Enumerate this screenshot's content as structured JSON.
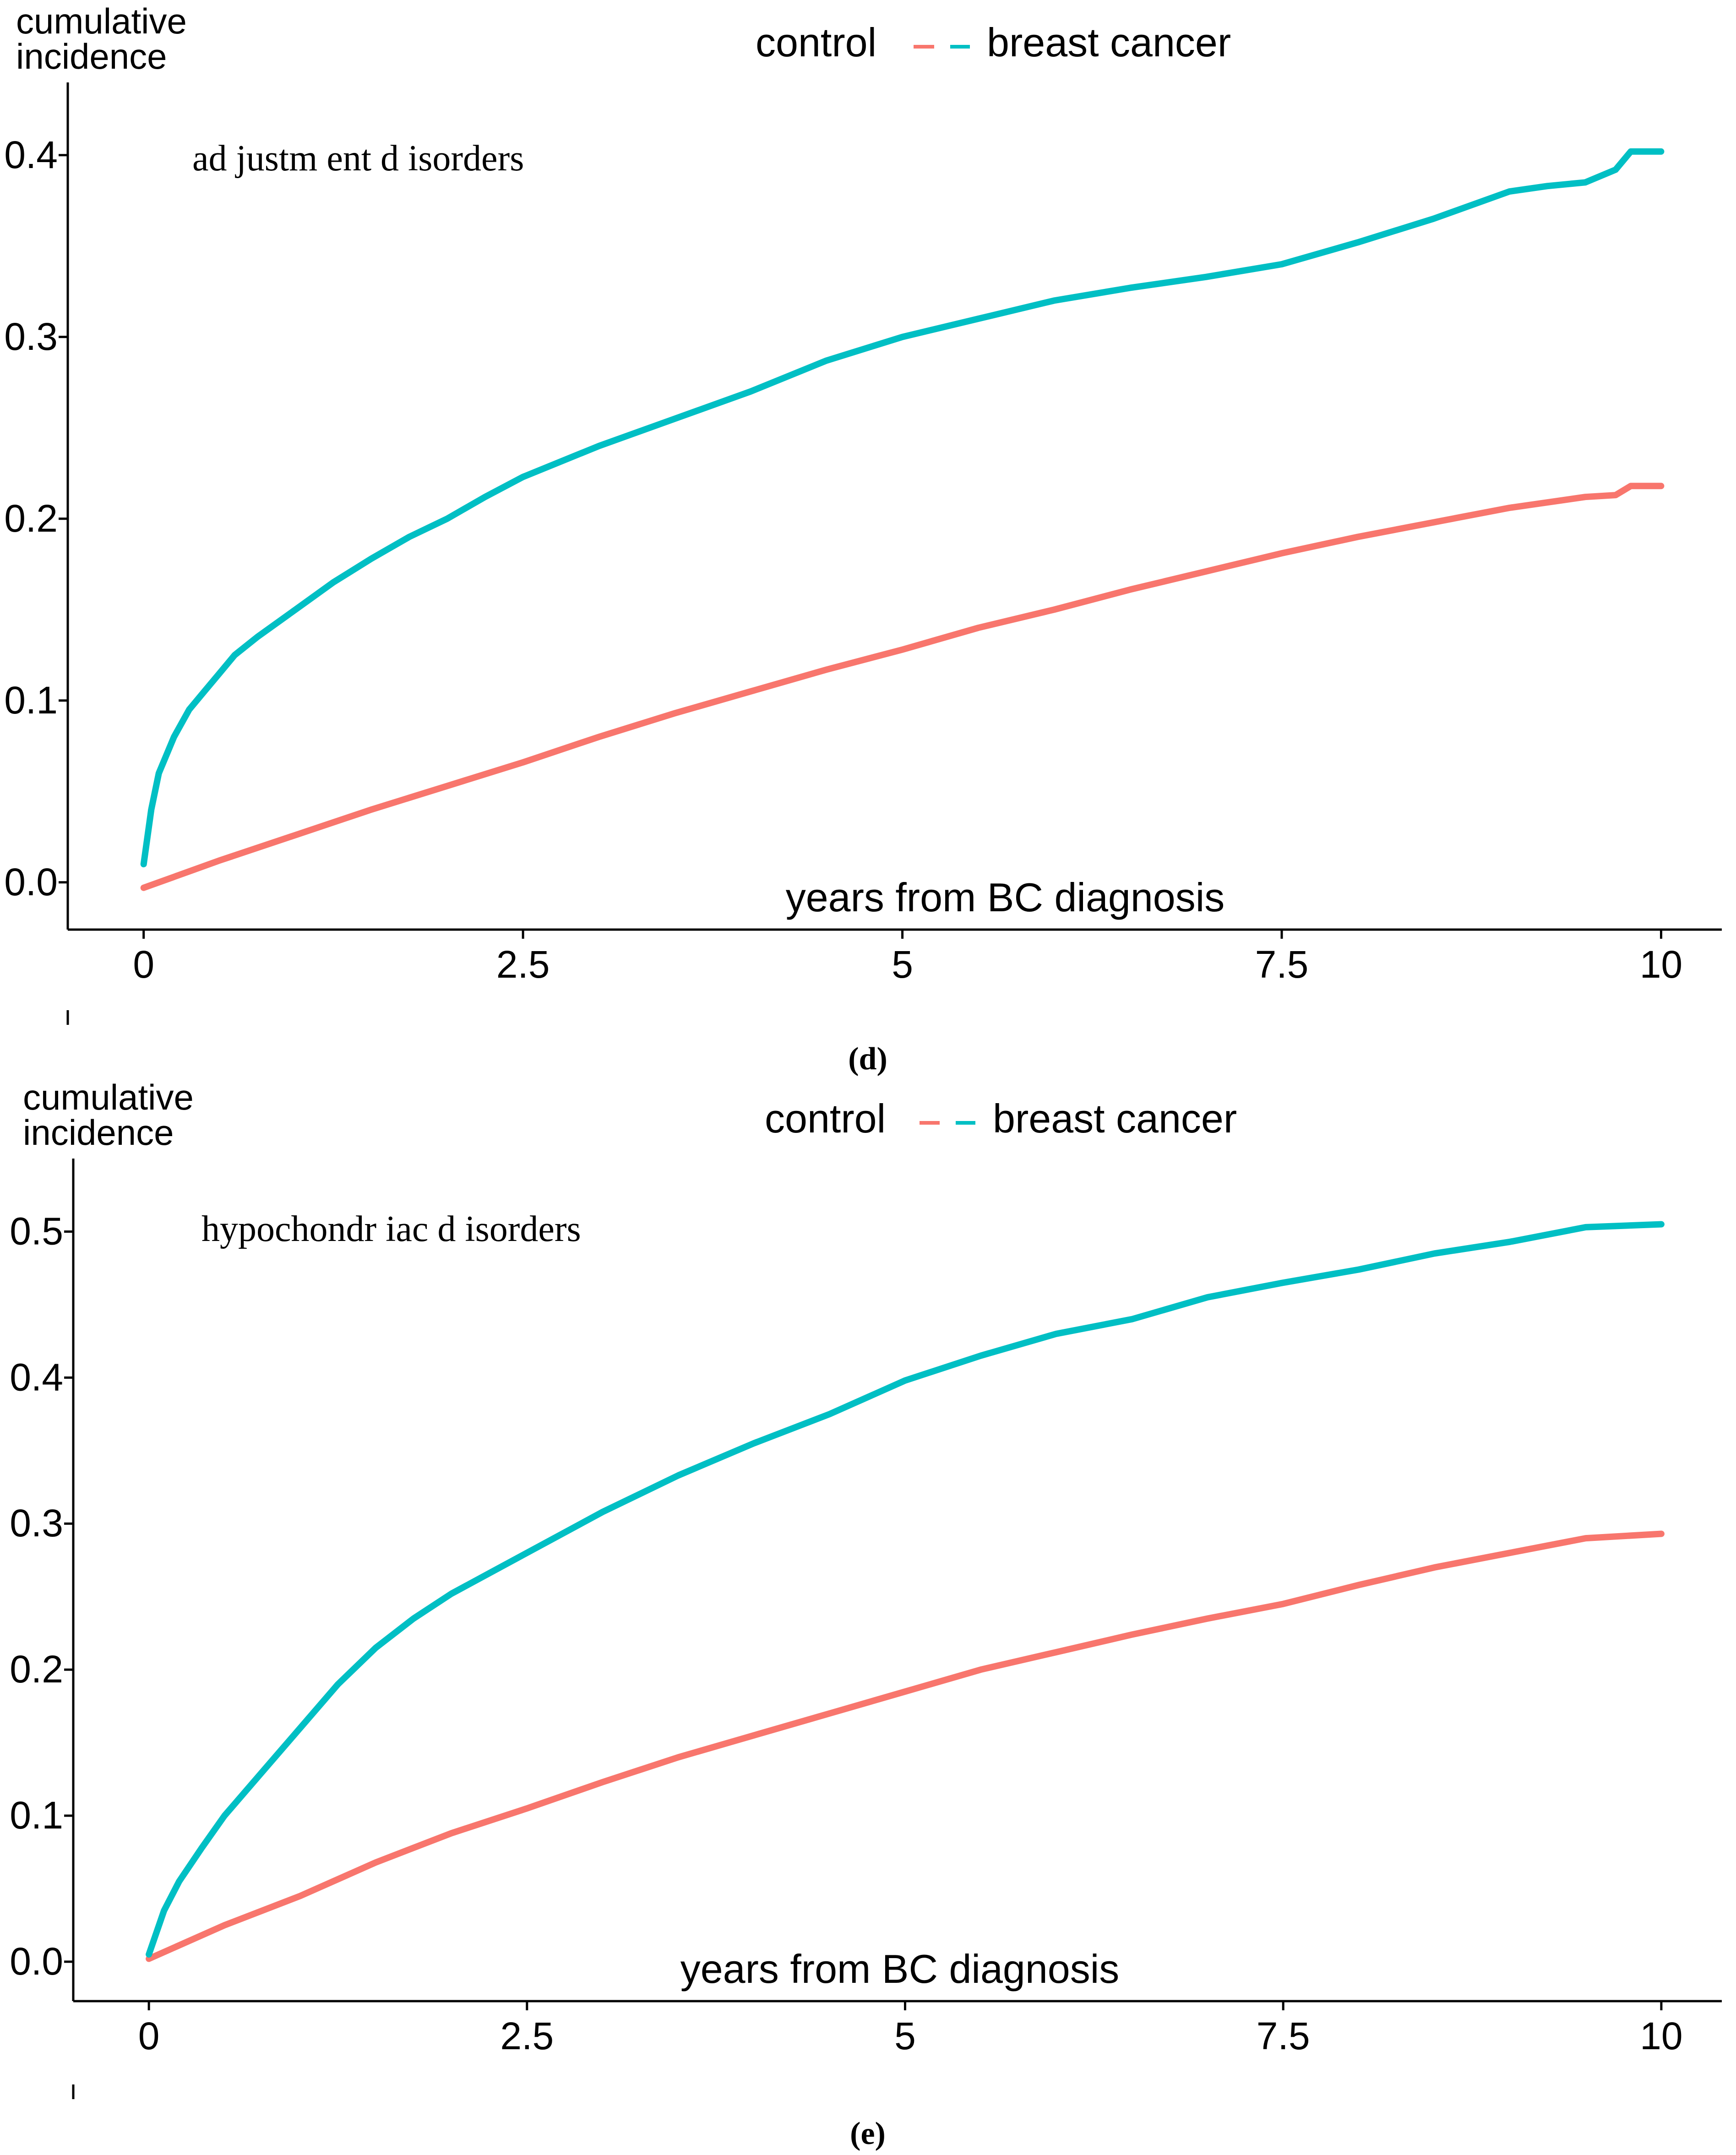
{
  "legend": {
    "control_label": "control",
    "case_label": "breast cancer"
  },
  "colors": {
    "control": "#F8766D",
    "breast_cancer": "#00BFC4",
    "axis": "#000000"
  },
  "chart_data": [
    {
      "type": "line",
      "panel_label": "(d)",
      "ylabel": "cumulative\nincidence",
      "xlabel": "years from BC diagnosis",
      "annotation": "ad justm ent d isorders",
      "xlim": [
        -0.5,
        10.4
      ],
      "ylim": [
        -0.026,
        0.44
      ],
      "x_ticks": [
        0,
        2.5,
        5,
        7.5,
        10
      ],
      "x_tick_labels": [
        "0",
        "2.5",
        "5",
        "7.5",
        "10"
      ],
      "y_ticks": [
        0.0,
        0.1,
        0.2,
        0.3,
        0.4
      ],
      "y_tick_labels": [
        "0.0",
        "0.1",
        "0.2",
        "0.3",
        "0.4"
      ],
      "series": [
        {
          "name": "breast cancer",
          "x": [
            0,
            0.05,
            0.1,
            0.2,
            0.3,
            0.4,
            0.5,
            0.6,
            0.75,
            1.0,
            1.25,
            1.5,
            1.75,
            2.0,
            2.25,
            2.5,
            3.0,
            3.5,
            4.0,
            4.5,
            5.0,
            5.5,
            6.0,
            6.5,
            7.0,
            7.5,
            8.0,
            8.5,
            9.0,
            9.25,
            9.5,
            9.7,
            9.8,
            10.0
          ],
          "values": [
            0.01,
            0.04,
            0.06,
            0.08,
            0.095,
            0.105,
            0.115,
            0.125,
            0.135,
            0.15,
            0.165,
            0.178,
            0.19,
            0.2,
            0.212,
            0.223,
            0.24,
            0.255,
            0.27,
            0.287,
            0.3,
            0.31,
            0.32,
            0.327,
            0.333,
            0.34,
            0.352,
            0.365,
            0.38,
            0.383,
            0.385,
            0.392,
            0.402,
            0.402
          ]
        },
        {
          "name": "control",
          "x": [
            0,
            0.5,
            1.0,
            1.5,
            2.0,
            2.5,
            3.0,
            3.5,
            4.0,
            4.5,
            5.0,
            5.5,
            6.0,
            6.5,
            7.0,
            7.5,
            8.0,
            8.5,
            9.0,
            9.5,
            9.7,
            9.8,
            10.0
          ],
          "values": [
            -0.003,
            0.012,
            0.026,
            0.04,
            0.053,
            0.066,
            0.08,
            0.093,
            0.105,
            0.117,
            0.128,
            0.14,
            0.15,
            0.161,
            0.171,
            0.181,
            0.19,
            0.198,
            0.206,
            0.212,
            0.213,
            0.218,
            0.218
          ]
        }
      ]
    },
    {
      "type": "line",
      "panel_label": "(e)",
      "ylabel": "cumulative\nincidence",
      "xlabel": "years from BC diagnosis",
      "annotation": "hypochondr iac d isorders",
      "xlim": [
        -0.5,
        10.4
      ],
      "ylim": [
        -0.027,
        0.55
      ],
      "x_ticks": [
        0,
        2.5,
        5,
        7.5,
        10
      ],
      "x_tick_labels": [
        "0",
        "2.5",
        "5",
        "7.5",
        "10"
      ],
      "y_ticks": [
        0.0,
        0.1,
        0.2,
        0.3,
        0.4,
        0.5
      ],
      "y_tick_labels": [
        "0.0",
        "0.1",
        "0.2",
        "0.3",
        "0.4",
        "0.5"
      ],
      "series": [
        {
          "name": "breast cancer",
          "x": [
            0,
            0.1,
            0.2,
            0.35,
            0.5,
            0.75,
            1.0,
            1.25,
            1.5,
            1.75,
            2.0,
            2.5,
            3.0,
            3.5,
            4.0,
            4.5,
            5.0,
            5.5,
            6.0,
            6.5,
            7.0,
            7.5,
            8.0,
            8.5,
            9.0,
            9.5,
            10.0
          ],
          "values": [
            0.005,
            0.035,
            0.055,
            0.078,
            0.1,
            0.13,
            0.16,
            0.19,
            0.215,
            0.235,
            0.252,
            0.28,
            0.308,
            0.333,
            0.355,
            0.375,
            0.398,
            0.415,
            0.43,
            0.44,
            0.455,
            0.465,
            0.474,
            0.485,
            0.493,
            0.503,
            0.505
          ]
        },
        {
          "name": "control",
          "x": [
            0,
            0.5,
            1.0,
            1.5,
            2.0,
            2.5,
            3.0,
            3.5,
            4.0,
            4.5,
            5.0,
            5.5,
            6.0,
            6.5,
            7.0,
            7.5,
            8.0,
            8.5,
            9.0,
            9.5,
            10.0
          ],
          "values": [
            0.002,
            0.025,
            0.045,
            0.068,
            0.088,
            0.105,
            0.123,
            0.14,
            0.155,
            0.17,
            0.185,
            0.2,
            0.212,
            0.224,
            0.235,
            0.245,
            0.258,
            0.27,
            0.28,
            0.29,
            0.293
          ]
        }
      ]
    }
  ]
}
